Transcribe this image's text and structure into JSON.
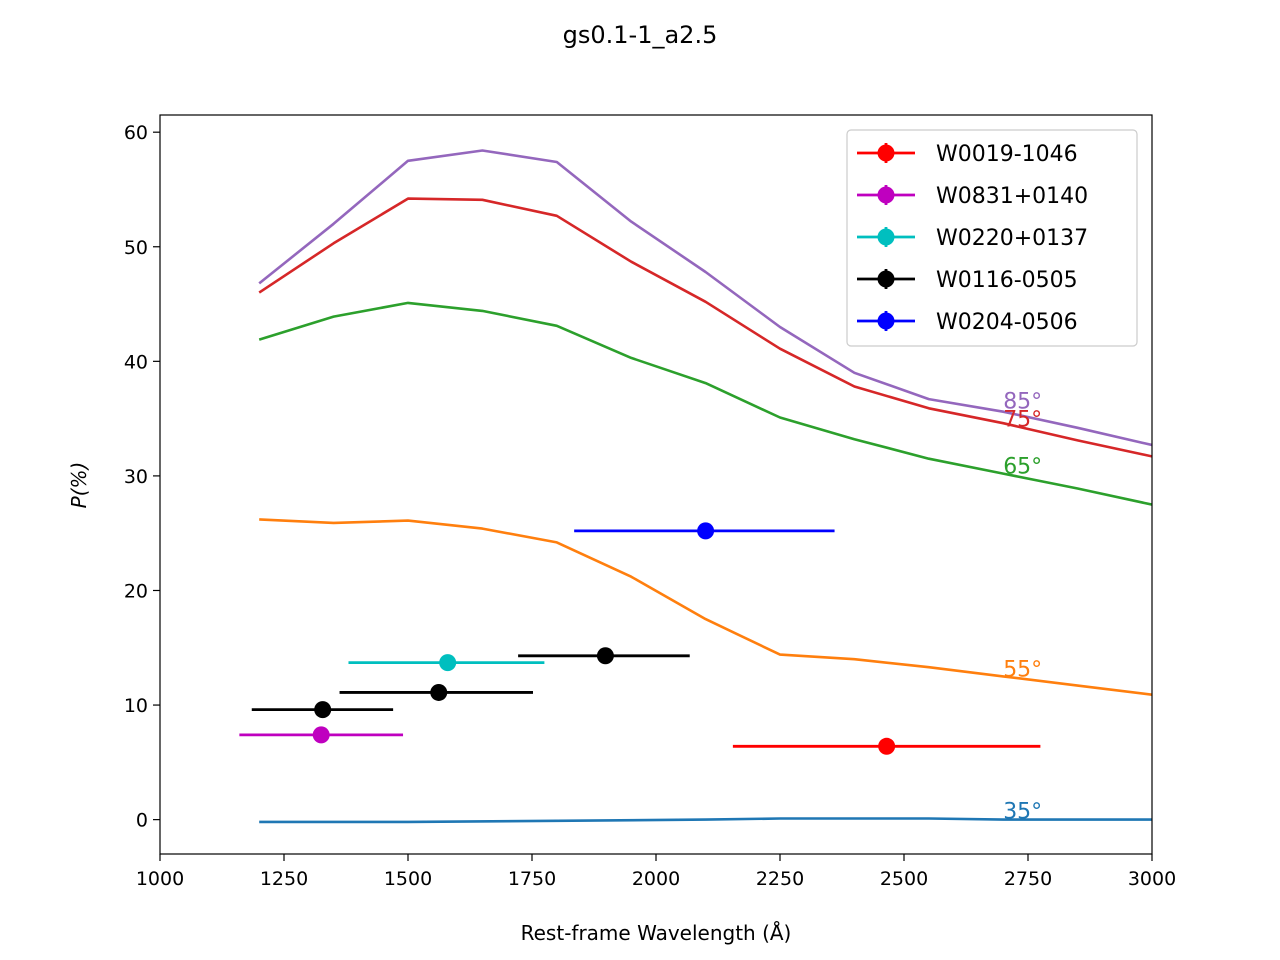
{
  "chart_data": {
    "type": "line",
    "title": "gs0.1-1_a2.5",
    "xlabel": "Rest-frame Wavelength (Å)",
    "ylabel": "P(%)",
    "xlim": [
      1000,
      3000
    ],
    "ylim": [
      -3,
      61.5
    ],
    "xticks": [
      1000,
      1250,
      1500,
      1750,
      2000,
      2250,
      2500,
      2750,
      3000
    ],
    "yticks": [
      0,
      10,
      20,
      30,
      40,
      50,
      60
    ],
    "grid": false,
    "legend_position": "top-right",
    "model_lines": [
      {
        "label": "85°",
        "color": "#9467bd",
        "x": [
          1200,
          1350,
          1500,
          1650,
          1800,
          1950,
          2100,
          2250,
          2400,
          2550,
          2700,
          2850,
          3000
        ],
        "y": [
          46.8,
          52.0,
          57.5,
          58.4,
          57.4,
          52.2,
          47.8,
          43.0,
          39.0,
          36.7,
          35.6,
          34.2,
          32.7
        ]
      },
      {
        "label": "75°",
        "color": "#d62728",
        "x": [
          1200,
          1350,
          1500,
          1650,
          1800,
          1950,
          2100,
          2250,
          2400,
          2550,
          2700,
          2850,
          3000
        ],
        "y": [
          46.0,
          50.3,
          54.2,
          54.1,
          52.7,
          48.7,
          45.2,
          41.1,
          37.8,
          35.9,
          34.6,
          33.1,
          31.7
        ]
      },
      {
        "label": "65°",
        "color": "#2ca02c",
        "x": [
          1200,
          1350,
          1500,
          1650,
          1800,
          1950,
          2100,
          2250,
          2400,
          2550,
          2700,
          2850,
          3000
        ],
        "y": [
          41.9,
          43.9,
          45.1,
          44.4,
          43.1,
          40.3,
          38.1,
          35.1,
          33.2,
          31.5,
          30.2,
          28.9,
          27.5
        ]
      },
      {
        "label": "55°",
        "color": "#ff7f0e",
        "x": [
          1200,
          1350,
          1500,
          1650,
          1800,
          1950,
          2100,
          2250,
          2400,
          2550,
          2700,
          2850,
          3000
        ],
        "y": [
          26.2,
          25.9,
          26.1,
          25.4,
          24.2,
          21.2,
          17.5,
          14.4,
          14.0,
          13.3,
          12.5,
          11.7,
          10.9
        ]
      },
      {
        "label": "35°",
        "color": "#1f77b4",
        "x": [
          1200,
          1500,
          1800,
          2100,
          2250,
          2400,
          2550,
          2700,
          2850,
          3000
        ],
        "y": [
          -0.2,
          -0.2,
          -0.1,
          0.0,
          0.1,
          0.1,
          0.1,
          0.0,
          0.0,
          0.0
        ]
      }
    ],
    "series": [
      {
        "name": "W0019-1046",
        "color": "#ff0000",
        "points": [
          {
            "x": 2465,
            "y": 6.4,
            "xmin": 2155,
            "xmax": 2775
          }
        ]
      },
      {
        "name": "W0831+0140",
        "color": "#bf00bf",
        "points": [
          {
            "x": 1325,
            "y": 7.4,
            "xmin": 1160,
            "xmax": 1490
          }
        ]
      },
      {
        "name": "W0220+0137",
        "color": "#00bfbf",
        "points": [
          {
            "x": 1580,
            "y": 13.7,
            "xmin": 1380,
            "xmax": 1775
          }
        ]
      },
      {
        "name": "W0116-0505",
        "color": "#000000",
        "points": [
          {
            "x": 1328,
            "y": 9.6,
            "xmin": 1185,
            "xmax": 1470
          },
          {
            "x": 1562,
            "y": 11.1,
            "xmin": 1362,
            "xmax": 1752
          },
          {
            "x": 1898,
            "y": 14.3,
            "xmin": 1722,
            "xmax": 2068
          }
        ]
      },
      {
        "name": "W0204-0506",
        "color": "#0000ff",
        "points": [
          {
            "x": 2100,
            "y": 25.2,
            "xmin": 1835,
            "xmax": 2360
          }
        ]
      }
    ],
    "annotations": [
      {
        "text": "85°",
        "x": 2700,
        "y": 35.9,
        "color": "#9467bd"
      },
      {
        "text": "75°",
        "x": 2700,
        "y": 34.3,
        "color": "#d62728"
      },
      {
        "text": "65°",
        "x": 2700,
        "y": 30.2,
        "color": "#2ca02c"
      },
      {
        "text": "55°",
        "x": 2700,
        "y": 12.5,
        "color": "#ff7f0e"
      },
      {
        "text": "35°",
        "x": 2700,
        "y": 0.1,
        "color": "#1f77b4"
      }
    ]
  }
}
